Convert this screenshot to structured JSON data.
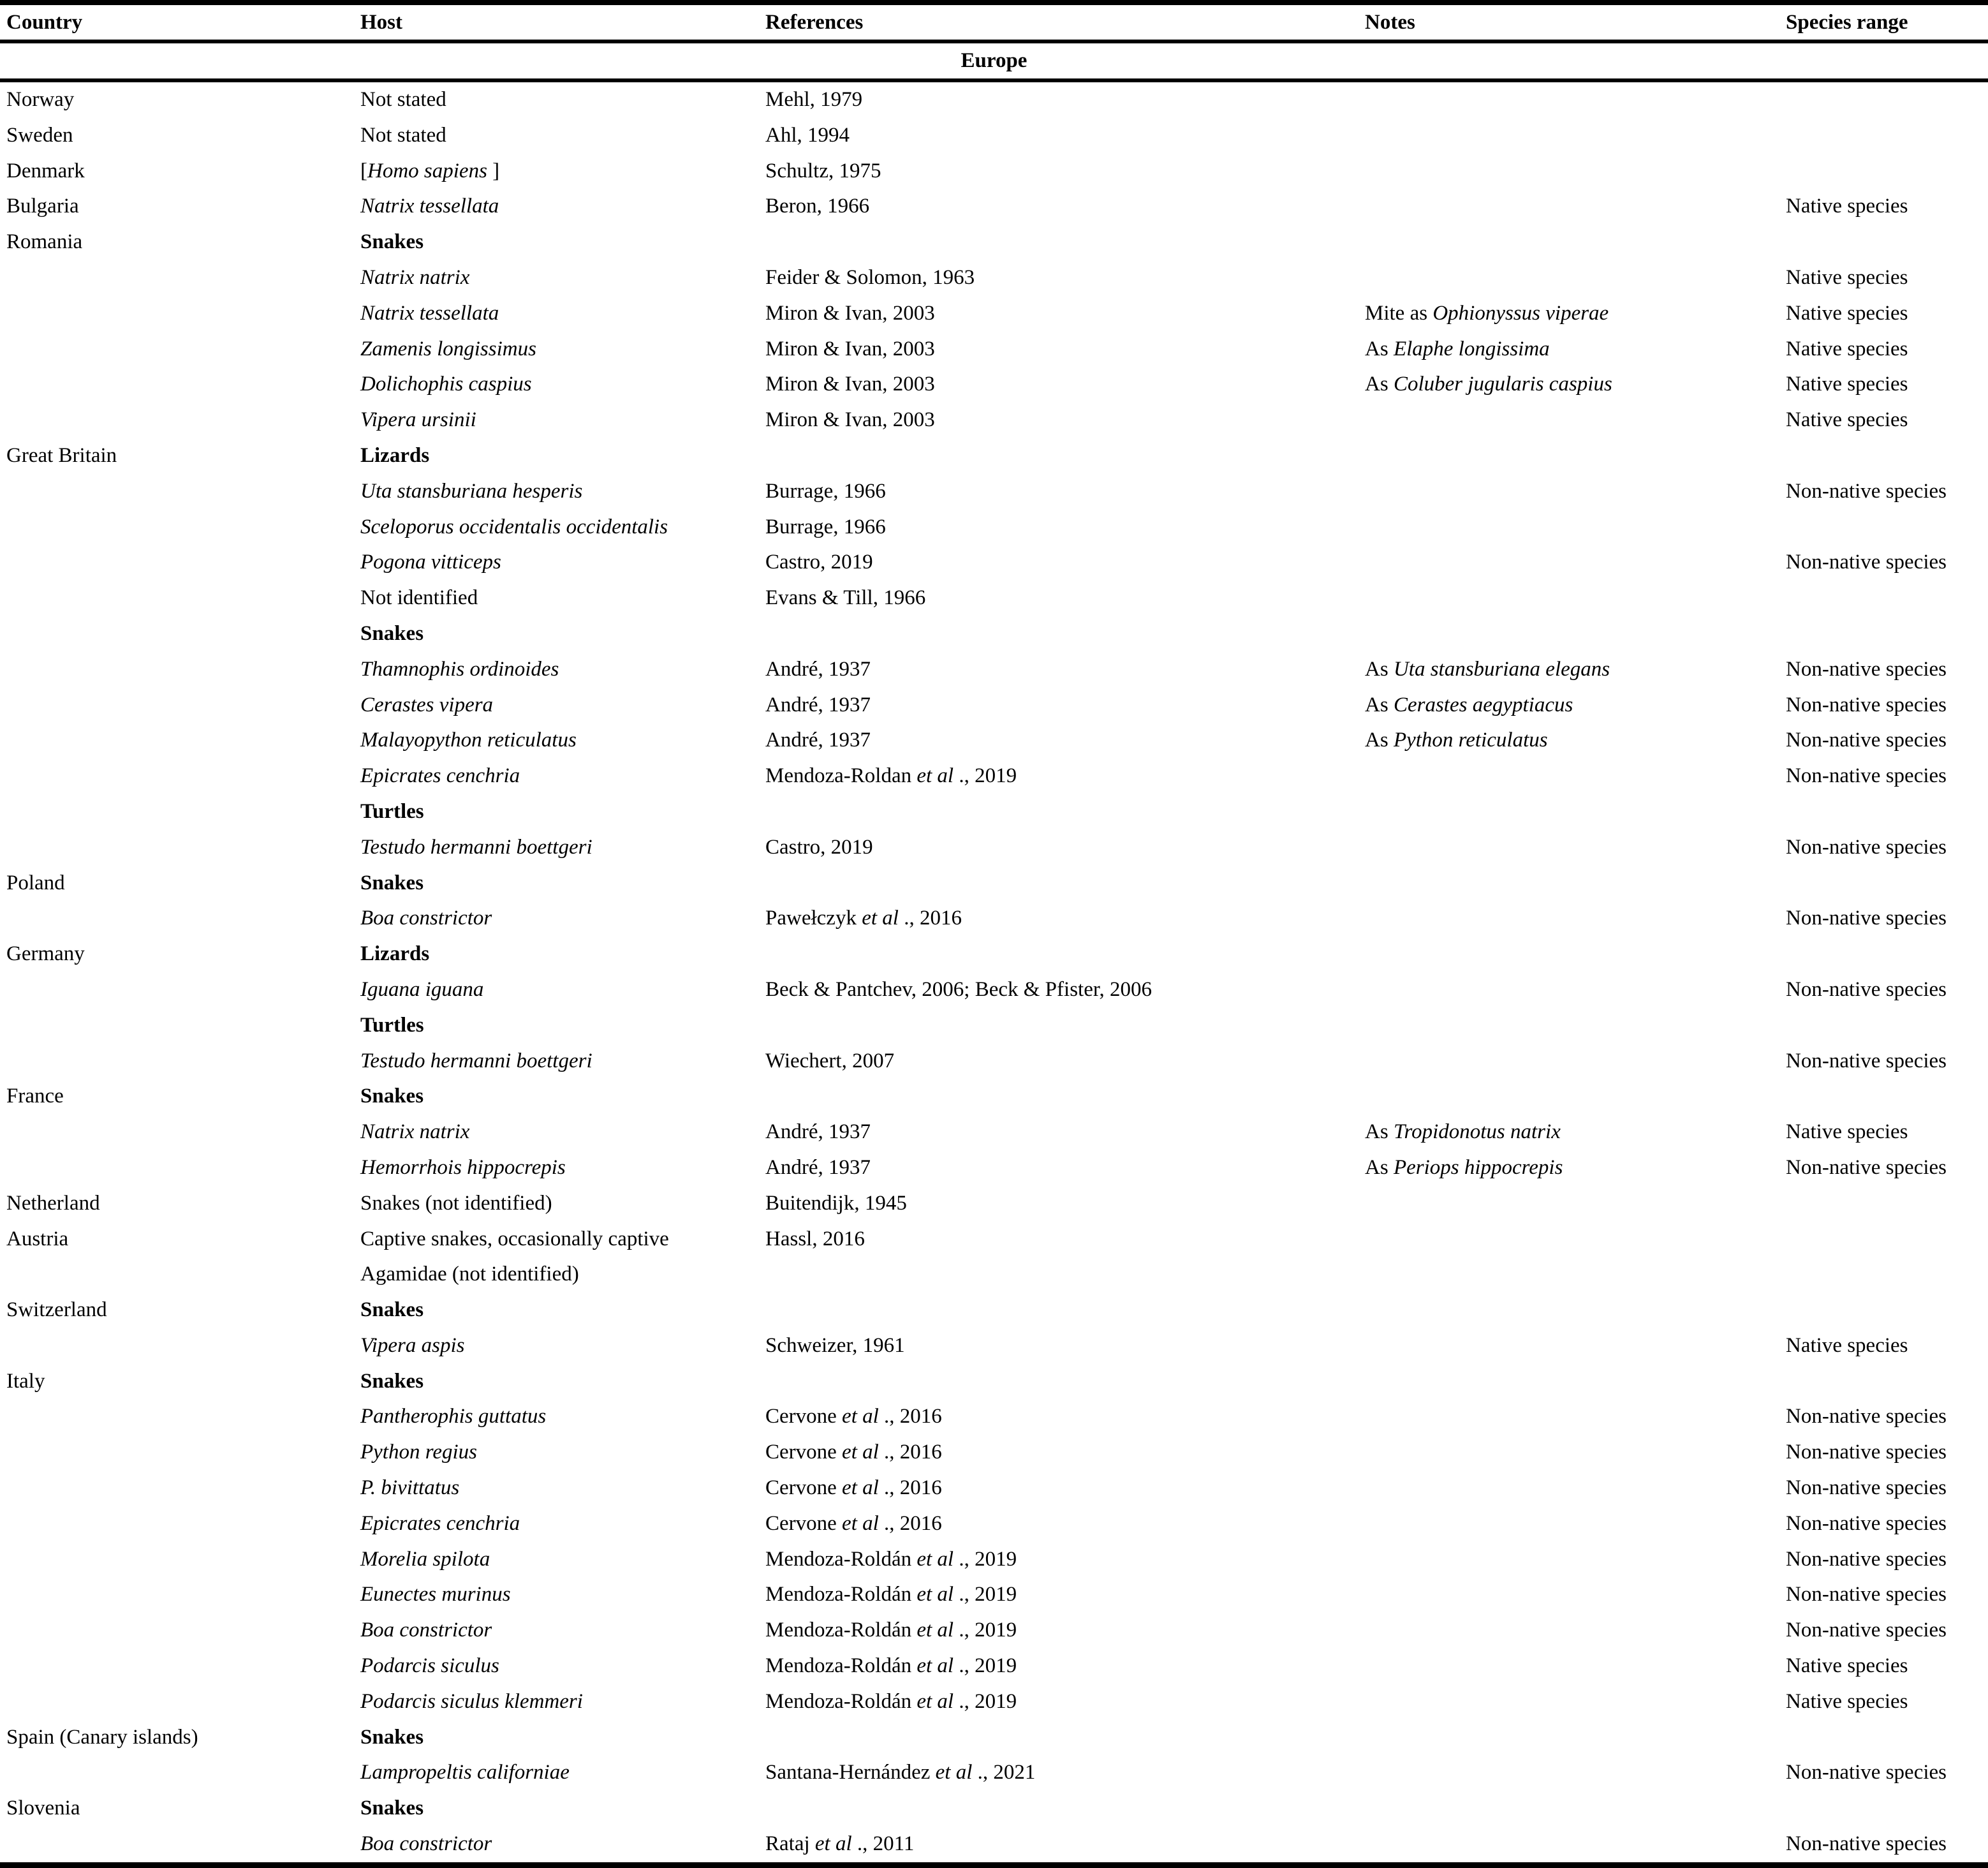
{
  "table": {
    "columns": [
      "Country",
      "Host",
      "References",
      "Notes",
      "Species range"
    ],
    "section_header": "Europe",
    "rows": [
      {
        "country": "Norway",
        "host": [
          {
            "t": "Not stated"
          }
        ],
        "refs": [
          {
            "t": "Mehl, 1979"
          }
        ],
        "notes": [],
        "range": ""
      },
      {
        "country": "Sweden",
        "host": [
          {
            "t": "Not stated"
          }
        ],
        "refs": [
          {
            "t": "Ahl, 1994"
          }
        ],
        "notes": [],
        "range": ""
      },
      {
        "country": "Denmark",
        "host": [
          {
            "t": "["
          },
          {
            "t": "Homo sapiens",
            "i": 1
          },
          {
            "t": " ]"
          }
        ],
        "refs": [
          {
            "t": "Schultz, 1975"
          }
        ],
        "notes": [],
        "range": ""
      },
      {
        "country": "Bulgaria",
        "host": [
          {
            "t": "Natrix tessellata",
            "i": 1
          }
        ],
        "refs": [
          {
            "t": "Beron, 1966"
          }
        ],
        "notes": [],
        "range": "Native species"
      },
      {
        "country": "Romania",
        "host": [
          {
            "t": "Snakes",
            "b": 1
          }
        ],
        "refs": [],
        "notes": [],
        "range": ""
      },
      {
        "country": "",
        "host": [
          {
            "t": "Natrix natrix",
            "i": 1
          }
        ],
        "refs": [
          {
            "t": "Feider & Solomon, 1963"
          }
        ],
        "notes": [],
        "range": "Native species"
      },
      {
        "country": "",
        "host": [
          {
            "t": "Natrix tessellata",
            "i": 1
          }
        ],
        "refs": [
          {
            "t": "Miron & Ivan, 2003"
          }
        ],
        "notes": [
          {
            "t": "Mite as "
          },
          {
            "t": "Ophionyssus viperae",
            "i": 1
          }
        ],
        "range": "Native species"
      },
      {
        "country": "",
        "host": [
          {
            "t": "Zamenis longissimus",
            "i": 1
          }
        ],
        "refs": [
          {
            "t": "Miron & Ivan, 2003"
          }
        ],
        "notes": [
          {
            "t": "As "
          },
          {
            "t": "Elaphe longissima",
            "i": 1
          }
        ],
        "range": "Native species"
      },
      {
        "country": "",
        "host": [
          {
            "t": "Dolichophis caspius",
            "i": 1
          }
        ],
        "refs": [
          {
            "t": "Miron & Ivan, 2003"
          }
        ],
        "notes": [
          {
            "t": "As "
          },
          {
            "t": "Coluber jugularis caspius",
            "i": 1
          }
        ],
        "range": "Native species"
      },
      {
        "country": "",
        "host": [
          {
            "t": "Vipera ursinii",
            "i": 1
          }
        ],
        "refs": [
          {
            "t": "Miron & Ivan, 2003"
          }
        ],
        "notes": [],
        "range": "Native species"
      },
      {
        "country": "Great Britain",
        "host": [
          {
            "t": "Lizards",
            "b": 1
          }
        ],
        "refs": [],
        "notes": [],
        "range": ""
      },
      {
        "country": "",
        "host": [
          {
            "t": "Uta stansburiana hesperis",
            "i": 1
          }
        ],
        "refs": [
          {
            "t": "Burrage, 1966"
          }
        ],
        "notes": [],
        "range": "Non-native species"
      },
      {
        "country": "",
        "host": [
          {
            "t": "Sceloporus occidentalis occidentalis",
            "i": 1
          }
        ],
        "refs": [
          {
            "t": "Burrage, 1966"
          }
        ],
        "notes": [],
        "range": ""
      },
      {
        "country": "",
        "host": [
          {
            "t": "Pogona vitticeps",
            "i": 1
          }
        ],
        "refs": [
          {
            "t": "Castro, 2019"
          }
        ],
        "notes": [],
        "range": "Non-native species"
      },
      {
        "country": "",
        "host": [
          {
            "t": "Not identified"
          }
        ],
        "refs": [
          {
            "t": "Evans & Till, 1966"
          }
        ],
        "notes": [],
        "range": ""
      },
      {
        "country": "",
        "host": [
          {
            "t": "Snakes",
            "b": 1
          }
        ],
        "refs": [],
        "notes": [],
        "range": ""
      },
      {
        "country": "",
        "host": [
          {
            "t": "Thamnophis ordinoides",
            "i": 1
          }
        ],
        "refs": [
          {
            "t": "André, 1937"
          }
        ],
        "notes": [
          {
            "t": "As "
          },
          {
            "t": "Uta stansburiana elegans",
            "i": 1
          }
        ],
        "range": "Non-native species"
      },
      {
        "country": "",
        "host": [
          {
            "t": "Cerastes vipera",
            "i": 1
          }
        ],
        "refs": [
          {
            "t": "André, 1937"
          }
        ],
        "notes": [
          {
            "t": "As "
          },
          {
            "t": "Cerastes aegyptiacus",
            "i": 1
          }
        ],
        "range": "Non-native species"
      },
      {
        "country": "",
        "host": [
          {
            "t": "Malayopython reticulatus",
            "i": 1
          }
        ],
        "refs": [
          {
            "t": "André, 1937"
          }
        ],
        "notes": [
          {
            "t": "As "
          },
          {
            "t": "Python reticulatus",
            "i": 1
          }
        ],
        "range": "Non-native species"
      },
      {
        "country": "",
        "host": [
          {
            "t": "Epicrates cenchria",
            "i": 1
          }
        ],
        "refs": [
          {
            "t": "Mendoza-Roldan "
          },
          {
            "t": "et al",
            "i": 1
          },
          {
            "t": " ., 2019"
          }
        ],
        "notes": [],
        "range": "Non-native species"
      },
      {
        "country": "",
        "host": [
          {
            "t": "Turtles",
            "b": 1
          }
        ],
        "refs": [],
        "notes": [],
        "range": ""
      },
      {
        "country": "",
        "host": [
          {
            "t": "Testudo hermanni boettgeri",
            "i": 1
          }
        ],
        "refs": [
          {
            "t": "Castro, 2019"
          }
        ],
        "notes": [],
        "range": "Non-native species"
      },
      {
        "country": "Poland",
        "host": [
          {
            "t": "Snakes",
            "b": 1
          }
        ],
        "refs": [],
        "notes": [],
        "range": ""
      },
      {
        "country": "",
        "host": [
          {
            "t": "Boa constrictor",
            "i": 1
          }
        ],
        "refs": [
          {
            "t": "Pawełczyk "
          },
          {
            "t": "et al",
            "i": 1
          },
          {
            "t": " ., 2016"
          }
        ],
        "notes": [],
        "range": "Non-native species"
      },
      {
        "country": "Germany",
        "host": [
          {
            "t": "Lizards",
            "b": 1
          }
        ],
        "refs": [],
        "notes": [],
        "range": ""
      },
      {
        "country": "",
        "host": [
          {
            "t": "Iguana iguana",
            "i": 1
          }
        ],
        "refs": [
          {
            "t": "Beck & Pantchev, 2006; Beck & Pfister, 2006"
          }
        ],
        "notes": [],
        "range": "Non-native species"
      },
      {
        "country": "",
        "host": [
          {
            "t": "Turtles",
            "b": 1
          }
        ],
        "refs": [],
        "notes": [],
        "range": ""
      },
      {
        "country": "",
        "host": [
          {
            "t": "Testudo hermanni boettgeri",
            "i": 1
          }
        ],
        "refs": [
          {
            "t": "Wiechert, 2007"
          }
        ],
        "notes": [],
        "range": "Non-native species"
      },
      {
        "country": "France",
        "host": [
          {
            "t": "Snakes",
            "b": 1
          }
        ],
        "refs": [],
        "notes": [],
        "range": ""
      },
      {
        "country": "",
        "host": [
          {
            "t": "Natrix natrix",
            "i": 1
          }
        ],
        "refs": [
          {
            "t": "André, 1937"
          }
        ],
        "notes": [
          {
            "t": "As "
          },
          {
            "t": "Tropidonotus natrix",
            "i": 1
          }
        ],
        "range": "Native species"
      },
      {
        "country": "",
        "host": [
          {
            "t": "Hemorrhois hippocrepis",
            "i": 1
          }
        ],
        "refs": [
          {
            "t": "André, 1937"
          }
        ],
        "notes": [
          {
            "t": "As "
          },
          {
            "t": "Periops hippocrepis",
            "i": 1
          }
        ],
        "range": "Non-native species"
      },
      {
        "country": "Netherland",
        "host": [
          {
            "t": "Snakes (not identified)"
          }
        ],
        "refs": [
          {
            "t": "Buitendijk, 1945"
          }
        ],
        "notes": [],
        "range": ""
      },
      {
        "country": "Austria",
        "host": [
          {
            "t": "Captive snakes, occasionally captive Agamidae (not identified)"
          }
        ],
        "refs": [
          {
            "t": "Hassl, 2016"
          }
        ],
        "notes": [],
        "range": ""
      },
      {
        "country": "Switzerland",
        "host": [
          {
            "t": "Snakes",
            "b": 1
          }
        ],
        "refs": [],
        "notes": [],
        "range": ""
      },
      {
        "country": "",
        "host": [
          {
            "t": "Vipera aspis",
            "i": 1
          }
        ],
        "refs": [
          {
            "t": "Schweizer, 1961"
          }
        ],
        "notes": [],
        "range": "Native species"
      },
      {
        "country": "Italy",
        "host": [
          {
            "t": "Snakes",
            "b": 1
          }
        ],
        "refs": [],
        "notes": [],
        "range": ""
      },
      {
        "country": "",
        "host": [
          {
            "t": "Pantherophis guttatus",
            "i": 1
          }
        ],
        "refs": [
          {
            "t": "Cervone "
          },
          {
            "t": "et al",
            "i": 1
          },
          {
            "t": " ., 2016"
          }
        ],
        "notes": [],
        "range": "Non-native species"
      },
      {
        "country": "",
        "host": [
          {
            "t": "Python regius",
            "i": 1
          }
        ],
        "refs": [
          {
            "t": "Cervone "
          },
          {
            "t": "et al",
            "i": 1
          },
          {
            "t": " ., 2016"
          }
        ],
        "notes": [],
        "range": "Non-native species"
      },
      {
        "country": "",
        "host": [
          {
            "t": "P. bivittatus",
            "i": 1
          }
        ],
        "refs": [
          {
            "t": "Cervone "
          },
          {
            "t": "et al",
            "i": 1
          },
          {
            "t": " ., 2016"
          }
        ],
        "notes": [],
        "range": "Non-native species"
      },
      {
        "country": "",
        "host": [
          {
            "t": "Epicrates cenchria",
            "i": 1
          }
        ],
        "refs": [
          {
            "t": "Cervone "
          },
          {
            "t": "et al",
            "i": 1
          },
          {
            "t": " ., 2016"
          }
        ],
        "notes": [],
        "range": "Non-native species"
      },
      {
        "country": "",
        "host": [
          {
            "t": "Morelia spilota",
            "i": 1
          }
        ],
        "refs": [
          {
            "t": "Mendoza-Roldán "
          },
          {
            "t": "et al",
            "i": 1
          },
          {
            "t": " ., 2019"
          }
        ],
        "notes": [],
        "range": "Non-native species"
      },
      {
        "country": "",
        "host": [
          {
            "t": "Eunectes murinus",
            "i": 1
          }
        ],
        "refs": [
          {
            "t": "Mendoza-Roldán "
          },
          {
            "t": "et al",
            "i": 1
          },
          {
            "t": " ., 2019"
          }
        ],
        "notes": [],
        "range": "Non-native species"
      },
      {
        "country": "",
        "host": [
          {
            "t": "Boa constrictor",
            "i": 1
          }
        ],
        "refs": [
          {
            "t": "Mendoza-Roldán "
          },
          {
            "t": "et al",
            "i": 1
          },
          {
            "t": " ., 2019"
          }
        ],
        "notes": [],
        "range": "Non-native species"
      },
      {
        "country": "",
        "host": [
          {
            "t": "Podarcis siculus",
            "i": 1
          }
        ],
        "refs": [
          {
            "t": "Mendoza-Roldán "
          },
          {
            "t": "et al",
            "i": 1
          },
          {
            "t": " ., 2019"
          }
        ],
        "notes": [],
        "range": "Native species"
      },
      {
        "country": "",
        "host": [
          {
            "t": "Podarcis siculus klemmeri",
            "i": 1
          }
        ],
        "refs": [
          {
            "t": "Mendoza-Roldán "
          },
          {
            "t": "et al",
            "i": 1
          },
          {
            "t": " ., 2019"
          }
        ],
        "notes": [],
        "range": "Native species"
      },
      {
        "country": "Spain (Canary islands)",
        "host": [
          {
            "t": "Snakes",
            "b": 1
          }
        ],
        "refs": [],
        "notes": [],
        "range": ""
      },
      {
        "country": "",
        "host": [
          {
            "t": "Lampropeltis californiae",
            "i": 1
          }
        ],
        "refs": [
          {
            "t": "Santana-Hernández "
          },
          {
            "t": "et al",
            "i": 1
          },
          {
            "t": " ., 2021"
          }
        ],
        "notes": [],
        "range": "Non-native species"
      },
      {
        "country": "Slovenia",
        "host": [
          {
            "t": "Snakes",
            "b": 1
          }
        ],
        "refs": [],
        "notes": [],
        "range": ""
      },
      {
        "country": "",
        "host": [
          {
            "t": "Boa constrictor",
            "i": 1
          }
        ],
        "refs": [
          {
            "t": "Rataj "
          },
          {
            "t": "et al",
            "i": 1
          },
          {
            "t": " ., 2011"
          }
        ],
        "notes": [],
        "range": "Non-native species"
      }
    ]
  }
}
